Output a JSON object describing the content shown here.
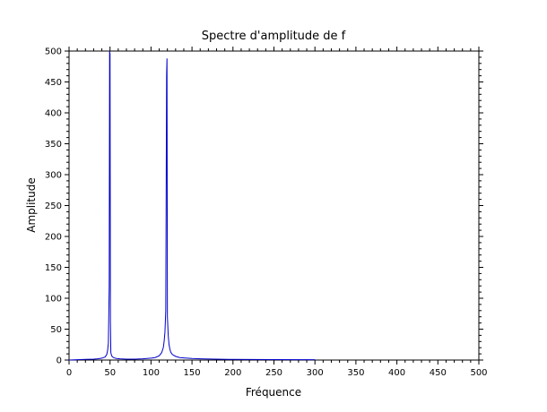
{
  "chart_data": {
    "type": "line",
    "title": "Spectre d'amplitude de f",
    "xlabel": "Fréquence",
    "ylabel": "Amplitude",
    "xlim": [
      0,
      500
    ],
    "ylim": [
      0,
      500
    ],
    "xticks": [
      0,
      50,
      100,
      150,
      200,
      250,
      300,
      350,
      400,
      450,
      500
    ],
    "yticks": [
      0,
      50,
      100,
      150,
      200,
      250,
      300,
      350,
      400,
      450,
      500
    ],
    "grid": false,
    "legend": "none",
    "series": [
      {
        "color": "#0000cc",
        "x": [
          0,
          10,
          20,
          30,
          35,
          40,
          44,
          46,
          47,
          48,
          49,
          49.5,
          50,
          50.5,
          51,
          52,
          53,
          55,
          58,
          62,
          70,
          80,
          90,
          100,
          105,
          110,
          113,
          115,
          116,
          117,
          118,
          119,
          119.5,
          120,
          120.5,
          121,
          122,
          123,
          124,
          126,
          130,
          135,
          140,
          150,
          160,
          180,
          200,
          250,
          300
        ],
        "y": [
          0,
          0.5,
          1,
          1.5,
          2,
          3,
          5,
          9,
          15,
          28,
          120,
          500,
          495,
          60,
          12,
          7,
          5,
          3.5,
          2.5,
          2,
          1.5,
          1.5,
          2,
          3,
          4,
          7,
          12,
          20,
          30,
          45,
          80,
          460,
          488,
          70,
          55,
          40,
          25,
          18,
          13,
          9,
          6,
          4,
          3.5,
          2.5,
          2,
          1.5,
          1,
          0.8,
          0.5
        ]
      }
    ]
  }
}
